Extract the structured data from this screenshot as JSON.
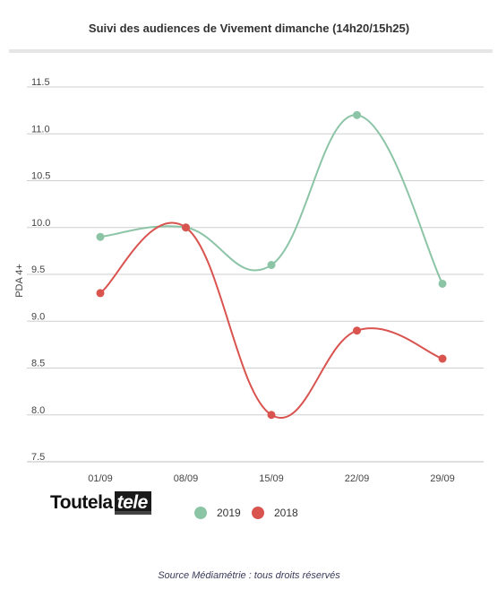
{
  "chart_data": {
    "type": "line",
    "title": "Suivi des audiences de Vivement dimanche (14h20/15h25)",
    "ylabel": "PDA 4+",
    "xlabel": "",
    "categories": [
      "01/09",
      "08/09",
      "15/09",
      "22/09",
      "29/09"
    ],
    "yticks": [
      "11.5",
      "11.0",
      "10.5",
      "10.0",
      "9.5",
      "9.0",
      "8.5",
      "8.0",
      "7.5"
    ],
    "ylim": [
      7.5,
      11.5
    ],
    "grid": true,
    "legend_position": "bottom",
    "series": [
      {
        "name": "2019",
        "color": "#8cc4a6",
        "values": [
          9.9,
          10.0,
          9.6,
          11.2,
          9.4
        ]
      },
      {
        "name": "2018",
        "color": "#d9534f",
        "values": [
          9.3,
          10.0,
          8.0,
          8.9,
          8.6
        ]
      }
    ]
  },
  "logo": {
    "part1": "Toutela",
    "part2": "tele"
  },
  "source": "Source Médiamétrie : tous droits réservés"
}
